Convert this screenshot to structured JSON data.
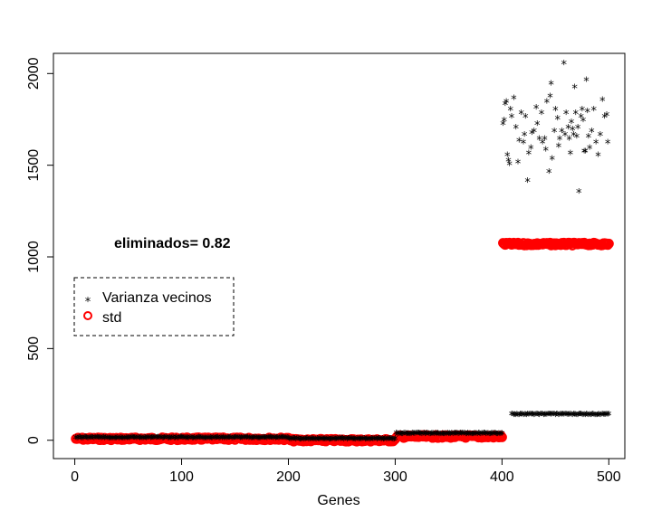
{
  "chart_data": {
    "type": "scatter",
    "xlabel": "Genes",
    "ylabel": "",
    "xlim": [
      -20,
      515
    ],
    "ylim": [
      -100,
      2110
    ],
    "xticks": [
      "0",
      "100",
      "200",
      "300",
      "400",
      "500"
    ],
    "yticks": [
      "0",
      "500",
      "1000",
      "1500",
      "2000"
    ],
    "annotation": "eliminados= 0.82",
    "legend": {
      "placement": "left",
      "border": "dashed",
      "entries": [
        {
          "label": "Varianza vecinos",
          "marker": "*",
          "color": "#000000"
        },
        {
          "label": "std",
          "marker": "o",
          "color": "#ff0000"
        }
      ]
    },
    "series": [
      {
        "name": "Varianza vecinos",
        "marker": "*",
        "color": "#000000",
        "segments": [
          {
            "x_range": [
              1,
              200
            ],
            "y": 8
          },
          {
            "x_range": [
              201,
              300
            ],
            "y": 2
          },
          {
            "x_range": [
              301,
              400
            ],
            "y": 30
          },
          {
            "x_range": [
              409,
              500
            ],
            "y": 135
          }
        ],
        "points": [
          [
            401,
            1720
          ],
          [
            402,
            1740
          ],
          [
            403,
            1830
          ],
          [
            404,
            1840
          ],
          [
            405,
            1550
          ],
          [
            406,
            1520
          ],
          [
            407,
            1500
          ],
          [
            408,
            1800
          ],
          [
            409,
            1760
          ],
          [
            411,
            1860
          ],
          [
            413,
            1700
          ],
          [
            415,
            1510
          ],
          [
            416,
            1630
          ],
          [
            418,
            1780
          ],
          [
            420,
            1620
          ],
          [
            421,
            1660
          ],
          [
            422,
            1760
          ],
          [
            424,
            1410
          ],
          [
            425,
            1560
          ],
          [
            427,
            1590
          ],
          [
            428,
            1670
          ],
          [
            430,
            1680
          ],
          [
            432,
            1810
          ],
          [
            433,
            1720
          ],
          [
            435,
            1640
          ],
          [
            437,
            1780
          ],
          [
            438,
            1620
          ],
          [
            440,
            1640
          ],
          [
            441,
            1580
          ],
          [
            442,
            1840
          ],
          [
            444,
            1460
          ],
          [
            445,
            1870
          ],
          [
            446,
            1940
          ],
          [
            447,
            1530
          ],
          [
            449,
            1680
          ],
          [
            450,
            1800
          ],
          [
            452,
            1750
          ],
          [
            453,
            1600
          ],
          [
            454,
            1640
          ],
          [
            456,
            1680
          ],
          [
            458,
            2050
          ],
          [
            459,
            1660
          ],
          [
            460,
            1780
          ],
          [
            462,
            1700
          ],
          [
            463,
            1640
          ],
          [
            464,
            1560
          ],
          [
            465,
            1730
          ],
          [
            466,
            1690
          ],
          [
            467,
            1660
          ],
          [
            468,
            1920
          ],
          [
            469,
            1780
          ],
          [
            470,
            1650
          ],
          [
            471,
            1700
          ],
          [
            472,
            1350
          ],
          [
            474,
            1760
          ],
          [
            475,
            1800
          ],
          [
            476,
            1740
          ],
          [
            477,
            1570
          ],
          [
            478,
            1570
          ],
          [
            479,
            1960
          ],
          [
            480,
            1790
          ],
          [
            481,
            1650
          ],
          [
            482,
            1590
          ],
          [
            484,
            1680
          ],
          [
            486,
            1800
          ],
          [
            488,
            1620
          ],
          [
            490,
            1550
          ],
          [
            492,
            1660
          ],
          [
            494,
            1850
          ],
          [
            496,
            1760
          ],
          [
            498,
            1770
          ],
          [
            499,
            1620
          ],
          [
            497,
            135
          ]
        ]
      },
      {
        "name": "std",
        "marker": "o",
        "color": "#ff0000",
        "segments": [
          {
            "x_range": [
              1,
              200
            ],
            "y": 8
          },
          {
            "x_range": [
              201,
              300
            ],
            "y": 0
          },
          {
            "x_range": [
              301,
              400
            ],
            "y": 20
          },
          {
            "x_range": [
              401,
              500
            ],
            "y": 1070
          }
        ]
      }
    ]
  }
}
